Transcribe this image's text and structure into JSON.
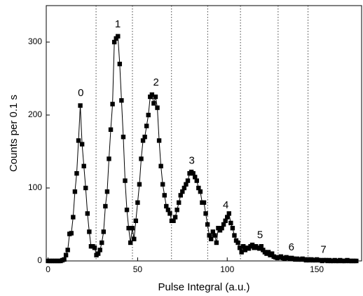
{
  "chart_data": {
    "type": "line",
    "xlabel": "Pulse Integral (a.u.)",
    "ylabel": "Counts per 0.1 s",
    "x": [
      0,
      1,
      2,
      3,
      4,
      5,
      6,
      7,
      8,
      9,
      10,
      11,
      12,
      13,
      14,
      15,
      16,
      17,
      18,
      19,
      20,
      21,
      22,
      23,
      24,
      25,
      26,
      27,
      28,
      29,
      30,
      31,
      32,
      33,
      34,
      35,
      36,
      37,
      38,
      39,
      40,
      41,
      42,
      43,
      44,
      45,
      46,
      47,
      48,
      49,
      50,
      51,
      52,
      53,
      54,
      55,
      56,
      57,
      58,
      59,
      60,
      61,
      62,
      63,
      64,
      65,
      66,
      67,
      68,
      69,
      70,
      71,
      72,
      73,
      74,
      75,
      76,
      77,
      78,
      79,
      80,
      81,
      82,
      83,
      84,
      85,
      86,
      87,
      88,
      89,
      90,
      91,
      92,
      93,
      94,
      95,
      96,
      97,
      98,
      99,
      100,
      101,
      102,
      103,
      104,
      105,
      106,
      107,
      108,
      109,
      110,
      111,
      112,
      113,
      114,
      115,
      116,
      117,
      118,
      119,
      120,
      121,
      122,
      123,
      124,
      125,
      126,
      127,
      128,
      129,
      130,
      131,
      132,
      133,
      134,
      135,
      136,
      137,
      138,
      139,
      140,
      141,
      142,
      143,
      144,
      145,
      146,
      147,
      148,
      149,
      150,
      151,
      152,
      153,
      154,
      155,
      156,
      157,
      158,
      159,
      160,
      161,
      162,
      163,
      164,
      165,
      166,
      167,
      168,
      169,
      170,
      171,
      172
    ],
    "series": [
      {
        "color": "#000000",
        "values": [
          0,
          0,
          0,
          0,
          0,
          0,
          0,
          0,
          1,
          2,
          8,
          15,
          37,
          38,
          60,
          95,
          120,
          165,
          213,
          160,
          130,
          100,
          65,
          40,
          20,
          20,
          18,
          8,
          10,
          15,
          25,
          40,
          75,
          95,
          140,
          180,
          215,
          300,
          305,
          308,
          270,
          220,
          170,
          110,
          70,
          45,
          25,
          45,
          30,
          55,
          80,
          105,
          140,
          165,
          170,
          185,
          200,
          225,
          228,
          216,
          225,
          210,
          165,
          130,
          105,
          90,
          75,
          70,
          65,
          55,
          55,
          60,
          70,
          80,
          90,
          95,
          100,
          105,
          110,
          120,
          122,
          120,
          115,
          110,
          100,
          95,
          80,
          80,
          65,
          50,
          35,
          30,
          40,
          35,
          25,
          45,
          42,
          45,
          50,
          55,
          60,
          65,
          52,
          45,
          35,
          28,
          25,
          18,
          12,
          20,
          15,
          18,
          17,
          20,
          22,
          18,
          20,
          18,
          17,
          20,
          15,
          12,
          10,
          12,
          8,
          10,
          6,
          5,
          4,
          5,
          6,
          4,
          3,
          5,
          4,
          3,
          4,
          3,
          2,
          3,
          2,
          2,
          3,
          2,
          1,
          2,
          1,
          2,
          1,
          1,
          2,
          1,
          1,
          0,
          1,
          1,
          0,
          1,
          0,
          0,
          1,
          0,
          0,
          1,
          0,
          0,
          0,
          1,
          0,
          0,
          0,
          0,
          0
        ]
      }
    ],
    "xlim": [
      -1,
      175
    ],
    "ylim": [
      0,
      350
    ],
    "xticks": [
      0,
      50,
      100,
      150
    ],
    "yticks": [
      0,
      100,
      200,
      300
    ],
    "vlines": [
      26.8,
      47.1,
      68.9,
      89.1,
      107.4,
      128.4,
      145.1
    ],
    "annotations": [
      {
        "text": "0",
        "x": 18.3,
        "y": 230
      },
      {
        "text": "1",
        "x": 38.9,
        "y": 324
      },
      {
        "text": "2",
        "x": 60.3,
        "y": 244
      },
      {
        "text": "3",
        "x": 80.2,
        "y": 137
      },
      {
        "text": "4",
        "x": 99.2,
        "y": 76
      },
      {
        "text": "5",
        "x": 118.3,
        "y": 35
      },
      {
        "text": "6",
        "x": 135.8,
        "y": 18
      },
      {
        "text": "7",
        "x": 153.7,
        "y": 15
      }
    ]
  }
}
